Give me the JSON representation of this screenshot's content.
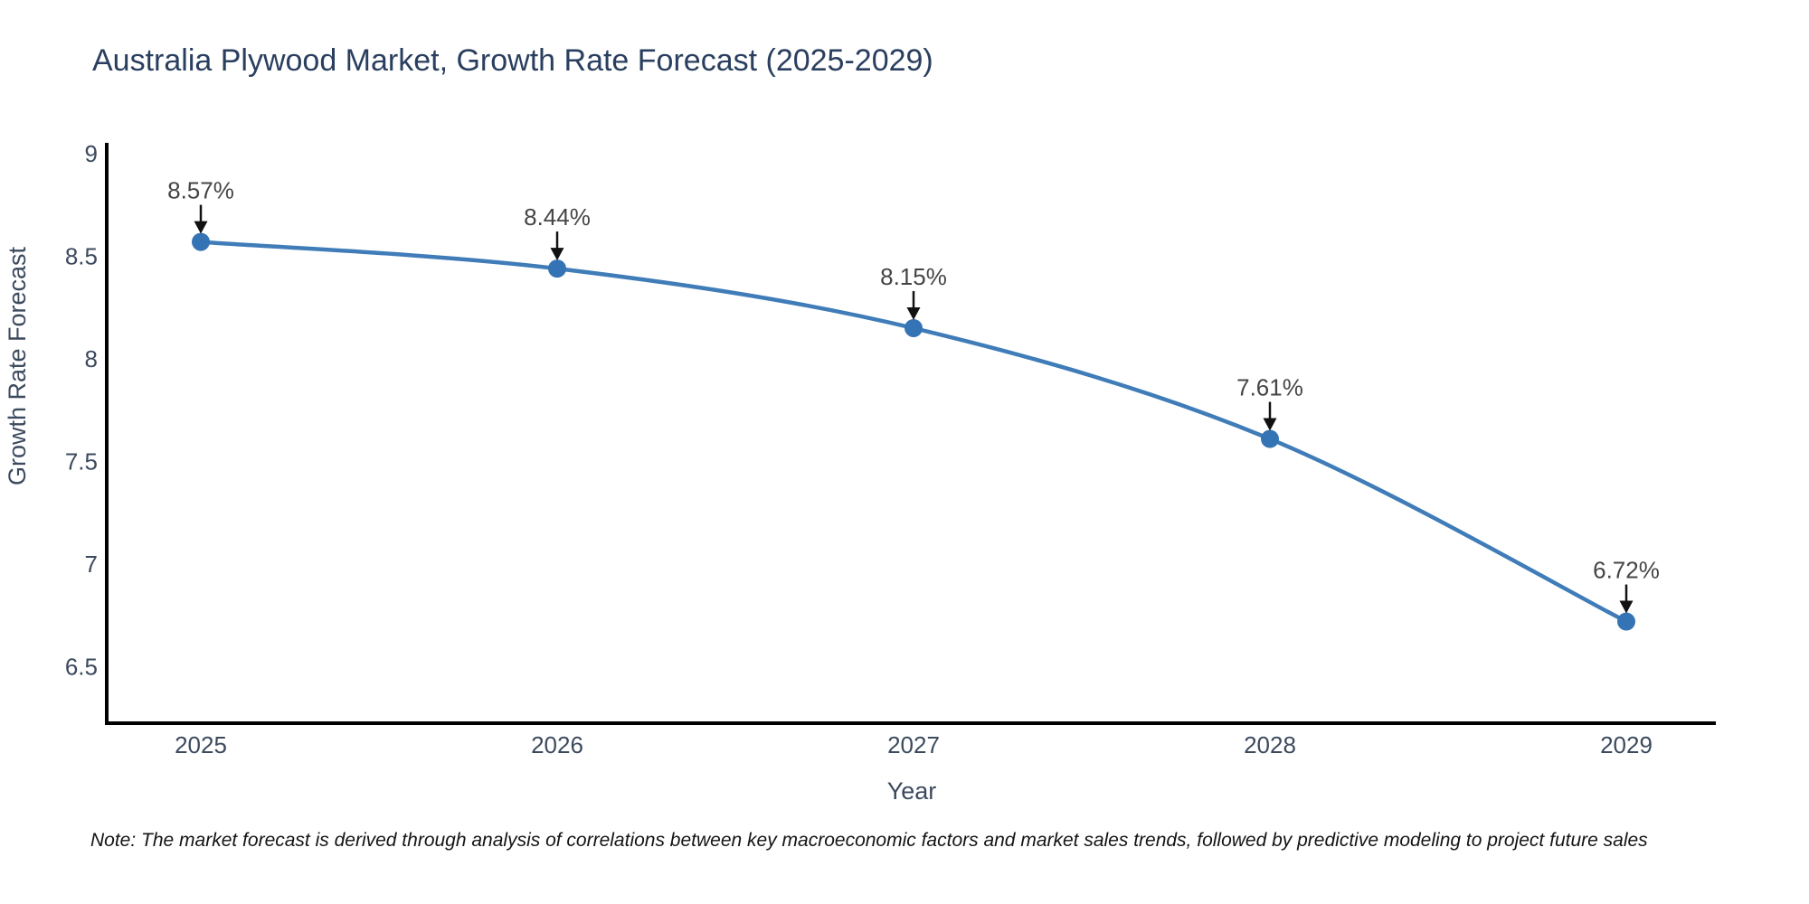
{
  "chart_data": {
    "type": "line",
    "title": "Australia Plywood Market, Growth Rate Forecast (2025-2029)",
    "x": [
      2025,
      2026,
      2027,
      2028,
      2029
    ],
    "xtick_labels": [
      "2025",
      "2026",
      "2027",
      "2028",
      "2029"
    ],
    "series": [
      {
        "name": "Growth Rate Forecast",
        "values": [
          8.57,
          8.44,
          8.15,
          7.61,
          6.72
        ],
        "point_labels": [
          "8.57%",
          "8.44%",
          "8.15%",
          "7.61%",
          "6.72%"
        ]
      }
    ],
    "xlabel": "Year",
    "ylabel": "Growth Rate Forecast",
    "yticks": [
      6.5,
      7,
      7.5,
      8,
      8.5,
      9
    ],
    "ytick_labels": [
      "6.5",
      "7",
      "7.5",
      "8",
      "8.5",
      "9"
    ],
    "ylim": [
      6.22,
      9.05
    ],
    "grid": false,
    "legend": false,
    "line_shape": "spline",
    "marker": "circle",
    "annotation_arrows": true,
    "colors": {
      "line": "#3f7cb8",
      "marker": "#3474b4",
      "arrow": "#111111",
      "annotation_text": "#454545",
      "axis_line": "#000000",
      "title_text": "#2a3f5f",
      "tick_text": "#3c4a5e",
      "note_text": "#141414"
    }
  },
  "note": {
    "text": "Note: The market forecast is derived through analysis of correlations between key macroeconomic factors and market sales trends, followed by predictive modeling to project future sales"
  }
}
